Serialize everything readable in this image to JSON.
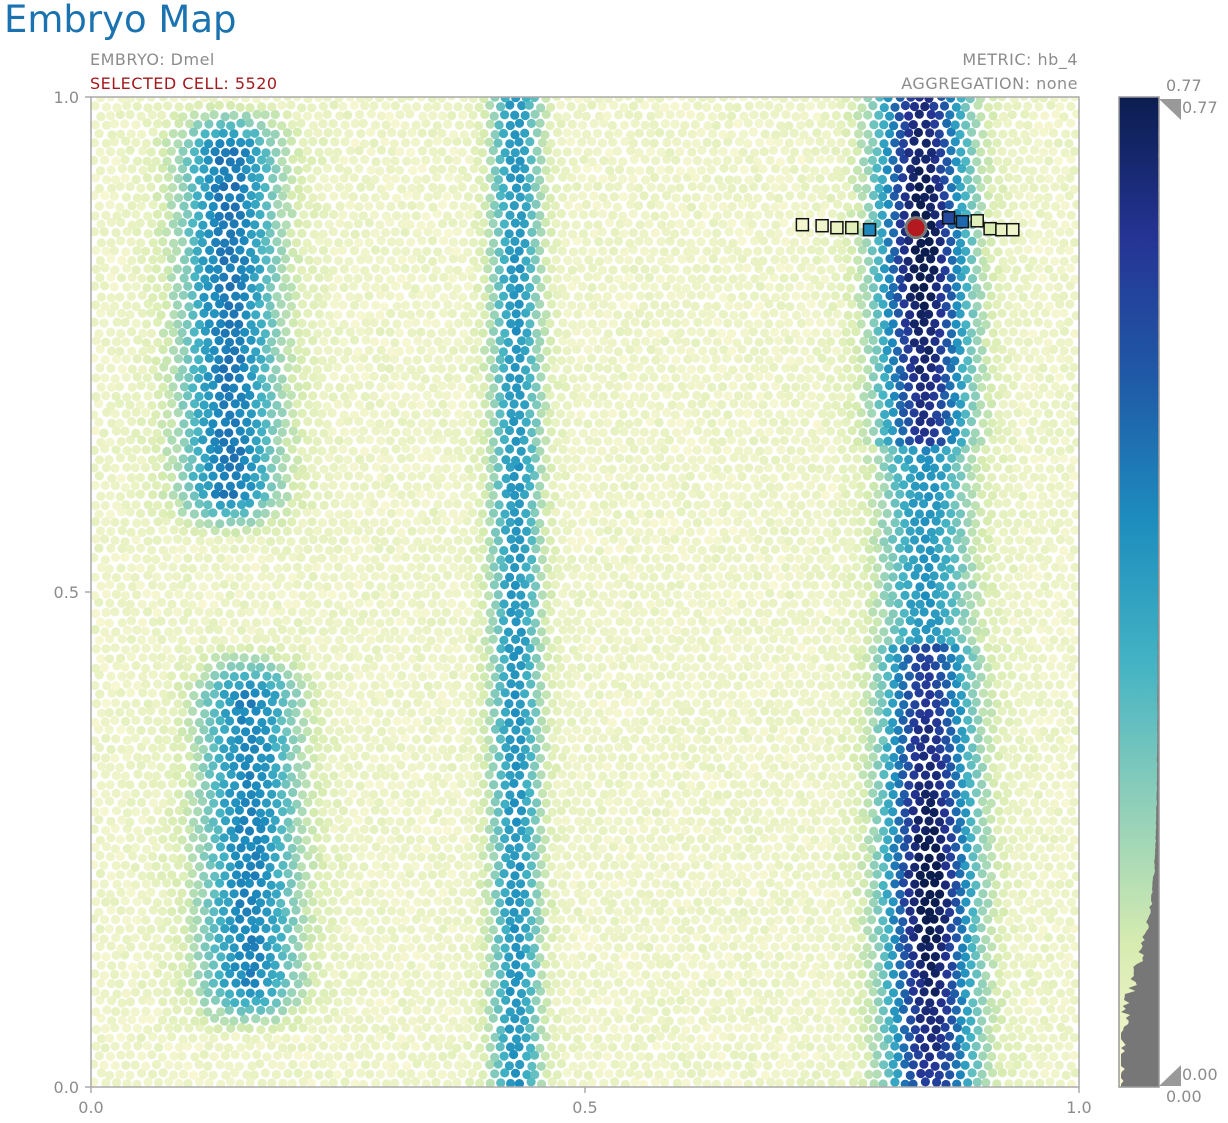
{
  "header": {
    "title": "Embryo Map",
    "embryo_label": "EMBRYO: Dmel",
    "selected_cell_label": "SELECTED CELL: 5520",
    "metric_label": "METRIC: hb_4",
    "aggregation_label": "AGGREGATION: none"
  },
  "colorbar": {
    "max_label": "0.77",
    "min_label": "0.00",
    "handle_max_label": "0.77",
    "handle_min_label": "0.00",
    "stops": [
      "#fbf8d6",
      "#d7ecb0",
      "#8fcfb9",
      "#43b3c4",
      "#1d8dbe",
      "#1f5aa7",
      "#253494",
      "#0b1d4f"
    ]
  },
  "chart_data": {
    "type": "scatter",
    "xlim": [
      0.0,
      1.0
    ],
    "ylim": [
      0.0,
      1.0
    ],
    "x_ticks": [
      "0.0",
      "0.5",
      "1.0"
    ],
    "y_ticks": [
      "0.0",
      "0.5",
      "1.0"
    ],
    "value_range": [
      0.0,
      0.77
    ],
    "selected_cell": {
      "x": 0.835,
      "y": 0.868
    },
    "neighbor_cells": [
      {
        "x": 0.72,
        "y": 0.871,
        "v": 0.02
      },
      {
        "x": 0.74,
        "y": 0.87,
        "v": 0.03
      },
      {
        "x": 0.755,
        "y": 0.868,
        "v": 0.05
      },
      {
        "x": 0.77,
        "y": 0.868,
        "v": 0.08
      },
      {
        "x": 0.788,
        "y": 0.866,
        "v": 0.45
      },
      {
        "x": 0.868,
        "y": 0.878,
        "v": 0.6
      },
      {
        "x": 0.882,
        "y": 0.874,
        "v": 0.52
      },
      {
        "x": 0.897,
        "y": 0.875,
        "v": 0.08
      },
      {
        "x": 0.91,
        "y": 0.867,
        "v": 0.1
      },
      {
        "x": 0.922,
        "y": 0.866,
        "v": 0.05
      },
      {
        "x": 0.933,
        "y": 0.866,
        "v": 0.03
      }
    ],
    "expression_stripes": [
      {
        "center_y1": 0.14,
        "center_y0": 0.14,
        "width": 0.05,
        "peak": 0.45,
        "y_range": [
          0.6,
          0.95
        ]
      },
      {
        "center_y1": 0.16,
        "center_y0": 0.16,
        "width": 0.05,
        "peak": 0.42,
        "y_range": [
          0.1,
          0.4
        ]
      },
      {
        "center_y1": 0.43,
        "center_y0": 0.43,
        "width": 0.025,
        "peak": 0.38,
        "y_range": [
          0.0,
          1.0
        ]
      },
      {
        "center_y1": 0.84,
        "center_y0": 0.85,
        "width": 0.045,
        "peak": 0.77,
        "y_range": [
          0.0,
          1.0
        ]
      }
    ]
  }
}
